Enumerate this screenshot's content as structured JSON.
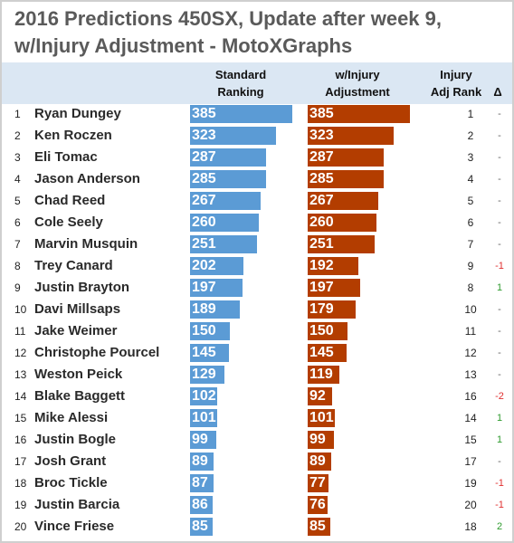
{
  "title": {
    "line1": "2016 Predictions 450SX, Update after week 9,",
    "line2": "w/Injury Adjustment - MotoXGraphs"
  },
  "headers": {
    "standard_l1": "Standard",
    "standard_l2": "Ranking",
    "injury_l1": "w/Injury",
    "injury_l2": "Adjustment",
    "adjrank_l1": "Injury",
    "adjrank_l2": "Adj Rank",
    "delta": "Δ"
  },
  "colors": {
    "standard_bar": "#5b9bd5",
    "injury_bar": "#b33d00",
    "header_band": "#dbe7f3",
    "delta_positive": "#2e9b2e",
    "delta_negative": "#e03030"
  },
  "chart_data": {
    "type": "bar",
    "orientation": "horizontal",
    "categories": [
      "Ryan Dungey",
      "Ken Roczen",
      "Eli Tomac",
      "Jason Anderson",
      "Chad Reed",
      "Cole Seely",
      "Marvin Musquin",
      "Trey Canard",
      "Justin Brayton",
      "Davi Millsaps",
      "Jake Weimer",
      "Christophe Pourcel",
      "Weston Peick",
      "Blake Baggett",
      "Mike Alessi",
      "Justin Bogle",
      "Josh Grant",
      "Broc Tickle",
      "Justin Barcia",
      "Vince Friese"
    ],
    "ranks": [
      "1",
      "2",
      "3",
      "4",
      "5",
      "6",
      "7",
      "8",
      "9",
      "10",
      "11",
      "12",
      "13",
      "14",
      "15",
      "16",
      "17",
      "18",
      "19",
      "20"
    ],
    "series": [
      {
        "name": "Standard Ranking",
        "values": [
          385,
          323,
          287,
          285,
          267,
          260,
          251,
          202,
          197,
          189,
          150,
          145,
          129,
          102,
          101,
          99,
          89,
          87,
          86,
          85
        ]
      },
      {
        "name": "w/Injury Adjustment",
        "values": [
          385,
          323,
          287,
          285,
          267,
          260,
          251,
          192,
          197,
          179,
          150,
          145,
          119,
          92,
          101,
          99,
          89,
          77,
          76,
          85
        ]
      }
    ],
    "injury_adj_rank": [
      "1",
      "2",
      "3",
      "4",
      "5",
      "6",
      "7",
      "9",
      "8",
      "10",
      "11",
      "12",
      "13",
      "16",
      "14",
      "15",
      "17",
      "19",
      "20",
      "18"
    ],
    "delta": [
      "-",
      "-",
      "-",
      "-",
      "-",
      "-",
      "-",
      "-1",
      "1",
      "-",
      "-",
      "-",
      "-",
      "-2",
      "1",
      "1",
      "-",
      "-1",
      "-1",
      "2"
    ],
    "xlim": [
      0,
      385
    ],
    "grid": false,
    "legend": "none"
  }
}
